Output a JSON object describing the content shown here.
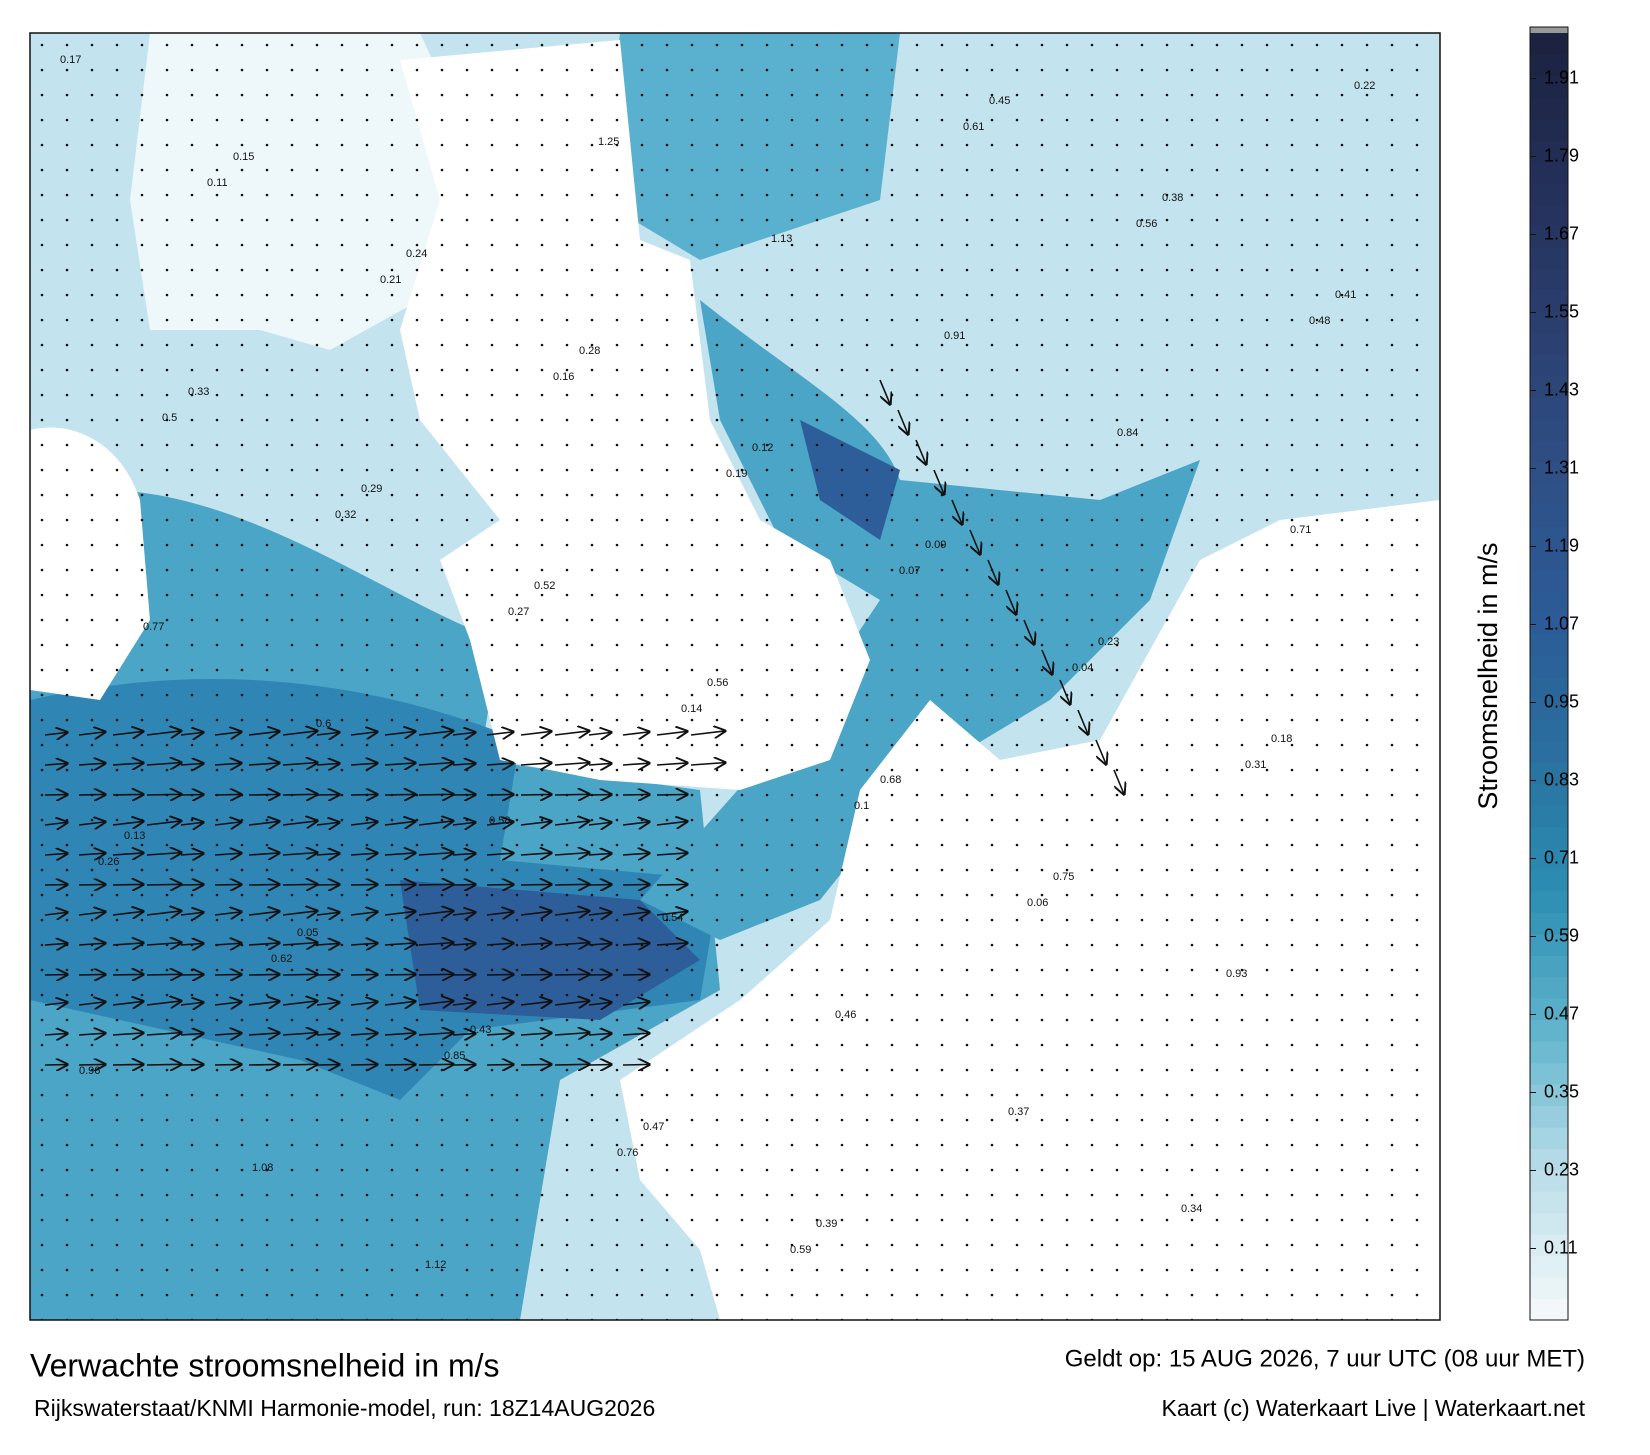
{
  "map": {
    "title": "Verwachte stroomsnelheid in m/s",
    "subtitle": "Rijkswaterstaat/KNMI Harmonie-model, run: 18Z14AUG2026",
    "valid": "Geldt op: 15 AUG 2026, 7 uur UTC (08 uur MET)",
    "credit": "Kaart (c) Waterkaart Live | Waterkaart.net",
    "colorbar": {
      "label": "Stroomsnelheid in m/s",
      "lim": [
        0,
        1.98
      ],
      "ticks": [
        0.11,
        0.23,
        0.35,
        0.47,
        0.59,
        0.71,
        0.83,
        0.95,
        1.07,
        1.19,
        1.31,
        1.43,
        1.55,
        1.67,
        1.79,
        1.91
      ],
      "colors": [
        "#f2f8fa",
        "#b9dde8",
        "#5fb3cc",
        "#2b8db1",
        "#2a6e9e",
        "#2c5a96",
        "#2f4f85",
        "#2b3f6e",
        "#24305a",
        "#1c2340"
      ]
    },
    "speed_labels": [
      0.17,
      0.15,
      0.24,
      0.28,
      0.12,
      0.09,
      0.23,
      0.18,
      0.13,
      0.05,
      0.43,
      0.47,
      0.39,
      0.45,
      0.38,
      0.41,
      0.33,
      0.29,
      0.52,
      0.56,
      0.68,
      0.75,
      0.93,
      0.96,
      1.08,
      1.12,
      1.25,
      1.13,
      0.91,
      0.84,
      0.71,
      0.77,
      0.6,
      0.58,
      0.54,
      0.46,
      0.37,
      0.34,
      0.22,
      0.11,
      0.21,
      0.16,
      0.19,
      0.07,
      0.04,
      0.31,
      0.26,
      0.62,
      0.85,
      0.76,
      0.59,
      0.61,
      0.56,
      0.48,
      0.5,
      0.32,
      0.27,
      0.14,
      0.1,
      0.06
    ]
  }
}
